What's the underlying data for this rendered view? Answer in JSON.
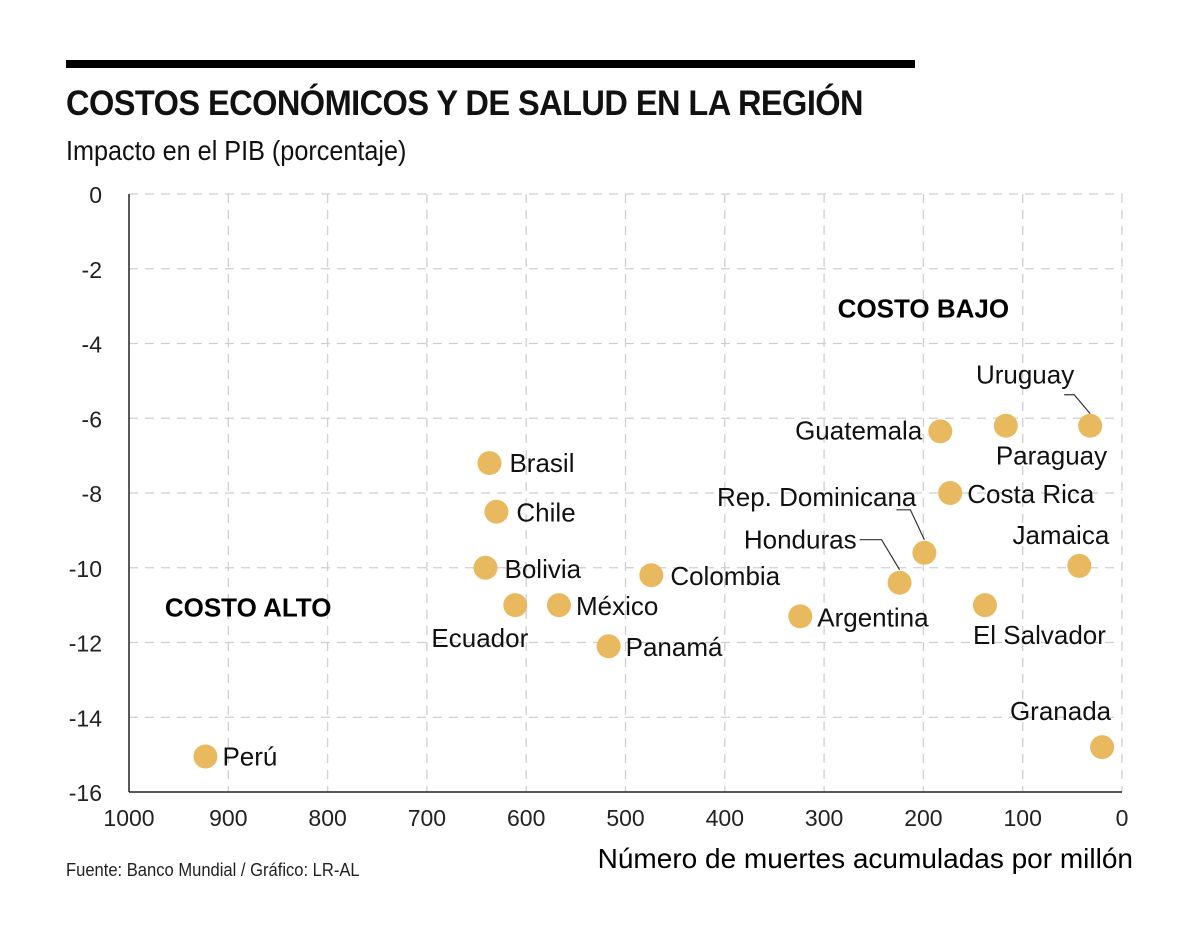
{
  "header": {
    "title": "COSTOS ECONÓMICOS Y DE SALUD EN LA REGIÓN",
    "subtitle": "Impacto en el PIB (porcentaje)"
  },
  "footer": {
    "source": "Fuente: Banco Mundial / Gráfico: LR-AL"
  },
  "colors": {
    "point": "#E8B95E",
    "grid": "#CFCFCF",
    "axis": "#222222"
  },
  "chart_data": {
    "type": "scatter",
    "title": "COSTOS ECONÓMICOS Y DE SALUD EN LA REGIÓN",
    "subtitle": "Impacto en el PIB (porcentaje)",
    "xlabel": "Número de muertes acumuladas por millón",
    "ylabel": "Impacto en el PIB (porcentaje)",
    "xlim": [
      1000,
      0
    ],
    "ylim": [
      -16,
      0
    ],
    "x_reversed": true,
    "grid": true,
    "xticks": [
      "1000",
      "900",
      "800",
      "700",
      "600",
      "500",
      "400",
      "300",
      "200",
      "100",
      "0"
    ],
    "yticks": [
      "0",
      "-2",
      "-4",
      "-6",
      "-8",
      "-10",
      "-12",
      "-14",
      "-16"
    ],
    "annotations": [
      {
        "text": "COSTO BAJO",
        "x": 200,
        "y": -3.3
      },
      {
        "text": "COSTO ALTO",
        "x": 880,
        "y": -11.3
      }
    ],
    "points": [
      {
        "name": "Perú",
        "x": 923,
        "y": -15.05
      },
      {
        "name": "Brasil",
        "x": 637,
        "y": -7.2
      },
      {
        "name": "Chile",
        "x": 630,
        "y": -8.5
      },
      {
        "name": "Bolivia",
        "x": 641,
        "y": -10.0
      },
      {
        "name": "Ecuador",
        "x": 611,
        "y": -11.0
      },
      {
        "name": "México",
        "x": 567,
        "y": -11.0
      },
      {
        "name": "Panamá",
        "x": 517,
        "y": -12.1
      },
      {
        "name": "Colombia",
        "x": 474,
        "y": -10.2
      },
      {
        "name": "Argentina",
        "x": 324,
        "y": -11.3
      },
      {
        "name": "Honduras",
        "x": 224,
        "y": -10.4
      },
      {
        "name": "Rep. Dominicana",
        "x": 199,
        "y": -9.6
      },
      {
        "name": "Guatemala",
        "x": 183,
        "y": -6.35
      },
      {
        "name": "Costa Rica",
        "x": 173,
        "y": -8.0
      },
      {
        "name": "El Salvador",
        "x": 138,
        "y": -11.0
      },
      {
        "name": "Paraguay",
        "x": 117,
        "y": -6.2
      },
      {
        "name": "Jamaica",
        "x": 43,
        "y": -9.95
      },
      {
        "name": "Uruguay",
        "x": 32,
        "y": -6.2
      },
      {
        "name": "Granada",
        "x": 20,
        "y": -14.8
      }
    ]
  }
}
